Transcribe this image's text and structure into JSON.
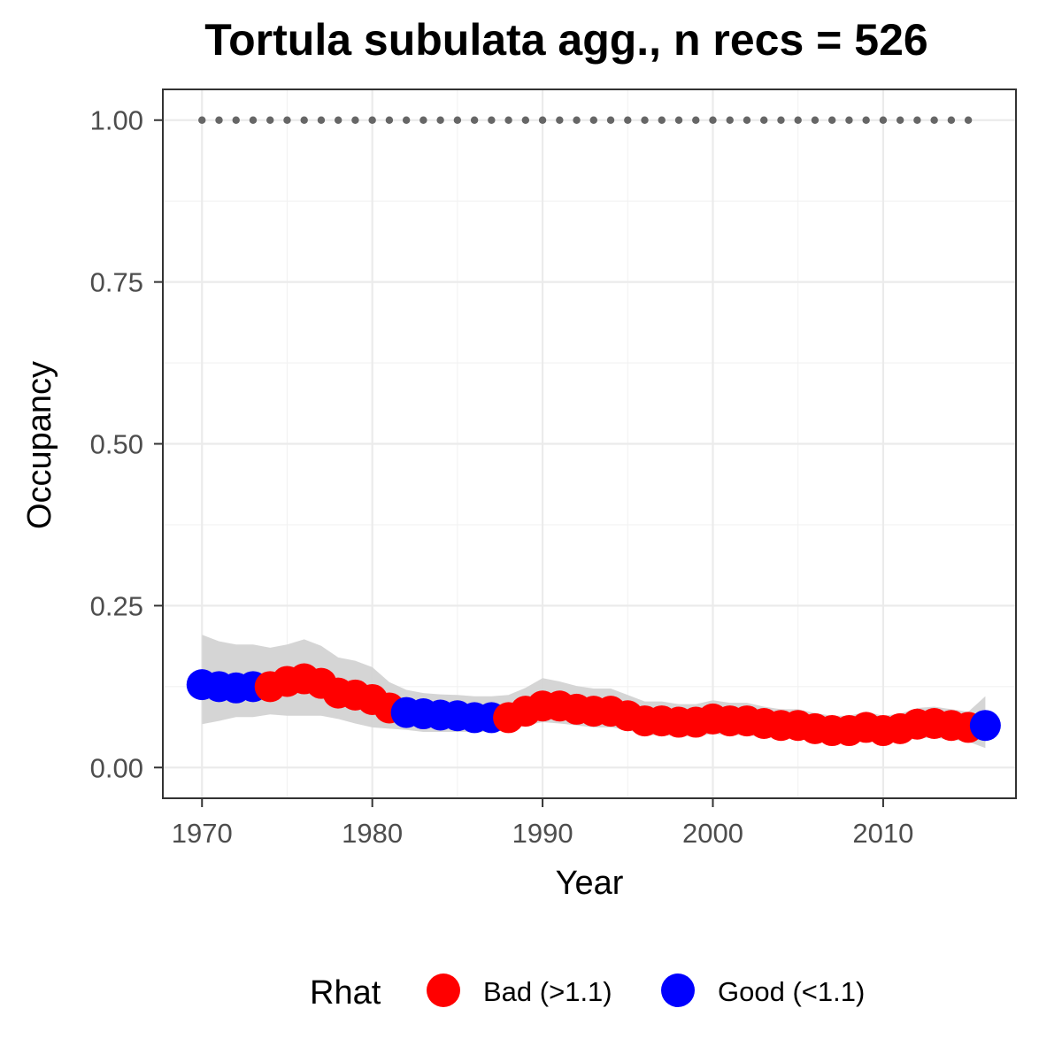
{
  "chart_data": {
    "type": "scatter",
    "title": "Tortula subulata agg., n recs = 526",
    "xlabel": "Year",
    "ylabel": "Occupancy",
    "xlim": [
      1967.7,
      2017.8
    ],
    "ylim": [
      -0.0475,
      1.0475
    ],
    "x_ticks": [
      1970,
      1980,
      1990,
      2000,
      2010
    ],
    "x_tick_labels": [
      "1970",
      "1980",
      "1990",
      "2000",
      "2010"
    ],
    "y_ticks": [
      0,
      0.25,
      0.5,
      0.75,
      1.0
    ],
    "y_tick_labels": [
      "0.00",
      "0.25",
      "0.50",
      "0.75",
      "1.00"
    ],
    "grid": true,
    "legend": {
      "title": "Rhat",
      "position": "bottom",
      "entries": [
        {
          "key": "bad",
          "label": "Bad (>1.1)",
          "color": "#ff0000"
        },
        {
          "key": "good",
          "label": "Good (<1.1)",
          "color": "#0000ff"
        }
      ]
    },
    "colors": {
      "bad": "#ff0000",
      "good": "#0000ff",
      "ribbon": "#d3d3d3",
      "reference": "#666666"
    },
    "reference_points": {
      "y": 1.0,
      "x": [
        1970,
        1971,
        1972,
        1973,
        1974,
        1975,
        1976,
        1977,
        1978,
        1979,
        1980,
        1981,
        1982,
        1983,
        1984,
        1985,
        1986,
        1987,
        1988,
        1989,
        1990,
        1991,
        1992,
        1993,
        1994,
        1995,
        1996,
        1997,
        1998,
        1999,
        2000,
        2001,
        2002,
        2003,
        2004,
        2005,
        2006,
        2007,
        2008,
        2009,
        2010,
        2011,
        2012,
        2013,
        2014,
        2015
      ]
    },
    "series": [
      {
        "x": [
          1970,
          1971,
          1972,
          1973,
          1974,
          1975,
          1976,
          1977,
          1978,
          1979,
          1980,
          1981,
          1982,
          1983,
          1984,
          1985,
          1986,
          1987,
          1988,
          1989,
          1990,
          1991,
          1992,
          1993,
          1994,
          1995,
          1996,
          1997,
          1998,
          1999,
          2000,
          2001,
          2002,
          2003,
          2004,
          2005,
          2006,
          2007,
          2008,
          2009,
          2010,
          2011,
          2012,
          2013,
          2014,
          2015,
          2016
        ],
        "y": [
          0.128,
          0.125,
          0.123,
          0.125,
          0.125,
          0.133,
          0.137,
          0.13,
          0.115,
          0.112,
          0.105,
          0.092,
          0.085,
          0.083,
          0.081,
          0.08,
          0.077,
          0.077,
          0.077,
          0.087,
          0.095,
          0.095,
          0.09,
          0.087,
          0.087,
          0.08,
          0.072,
          0.072,
          0.07,
          0.07,
          0.075,
          0.072,
          0.072,
          0.068,
          0.065,
          0.065,
          0.06,
          0.057,
          0.057,
          0.062,
          0.057,
          0.06,
          0.067,
          0.068,
          0.065,
          0.062,
          0.065
        ],
        "lower": [
          0.067,
          0.072,
          0.078,
          0.078,
          0.082,
          0.08,
          0.08,
          0.08,
          0.075,
          0.068,
          0.062,
          0.06,
          0.058,
          0.055,
          0.055,
          0.055,
          0.055,
          0.055,
          0.058,
          0.065,
          0.07,
          0.068,
          0.065,
          0.062,
          0.062,
          0.058,
          0.05,
          0.05,
          0.048,
          0.048,
          0.052,
          0.05,
          0.05,
          0.047,
          0.045,
          0.045,
          0.04,
          0.038,
          0.038,
          0.042,
          0.038,
          0.04,
          0.045,
          0.046,
          0.043,
          0.04,
          0.03
        ],
        "upper": [
          0.205,
          0.195,
          0.19,
          0.19,
          0.185,
          0.19,
          0.198,
          0.188,
          0.17,
          0.165,
          0.155,
          0.132,
          0.12,
          0.115,
          0.113,
          0.112,
          0.11,
          0.11,
          0.112,
          0.123,
          0.138,
          0.133,
          0.126,
          0.122,
          0.122,
          0.112,
          0.102,
          0.102,
          0.098,
          0.098,
          0.104,
          0.1,
          0.1,
          0.094,
          0.09,
          0.09,
          0.084,
          0.08,
          0.08,
          0.086,
          0.08,
          0.083,
          0.092,
          0.094,
          0.09,
          0.086,
          0.11
        ],
        "rhat": [
          "good",
          "good",
          "good",
          "good",
          "bad",
          "bad",
          "bad",
          "bad",
          "bad",
          "bad",
          "bad",
          "bad",
          "good",
          "good",
          "good",
          "good",
          "good",
          "good",
          "bad",
          "bad",
          "bad",
          "bad",
          "bad",
          "bad",
          "bad",
          "bad",
          "bad",
          "bad",
          "bad",
          "bad",
          "bad",
          "bad",
          "bad",
          "bad",
          "bad",
          "bad",
          "bad",
          "bad",
          "bad",
          "bad",
          "bad",
          "bad",
          "bad",
          "bad",
          "bad",
          "bad",
          "good"
        ]
      }
    ]
  }
}
